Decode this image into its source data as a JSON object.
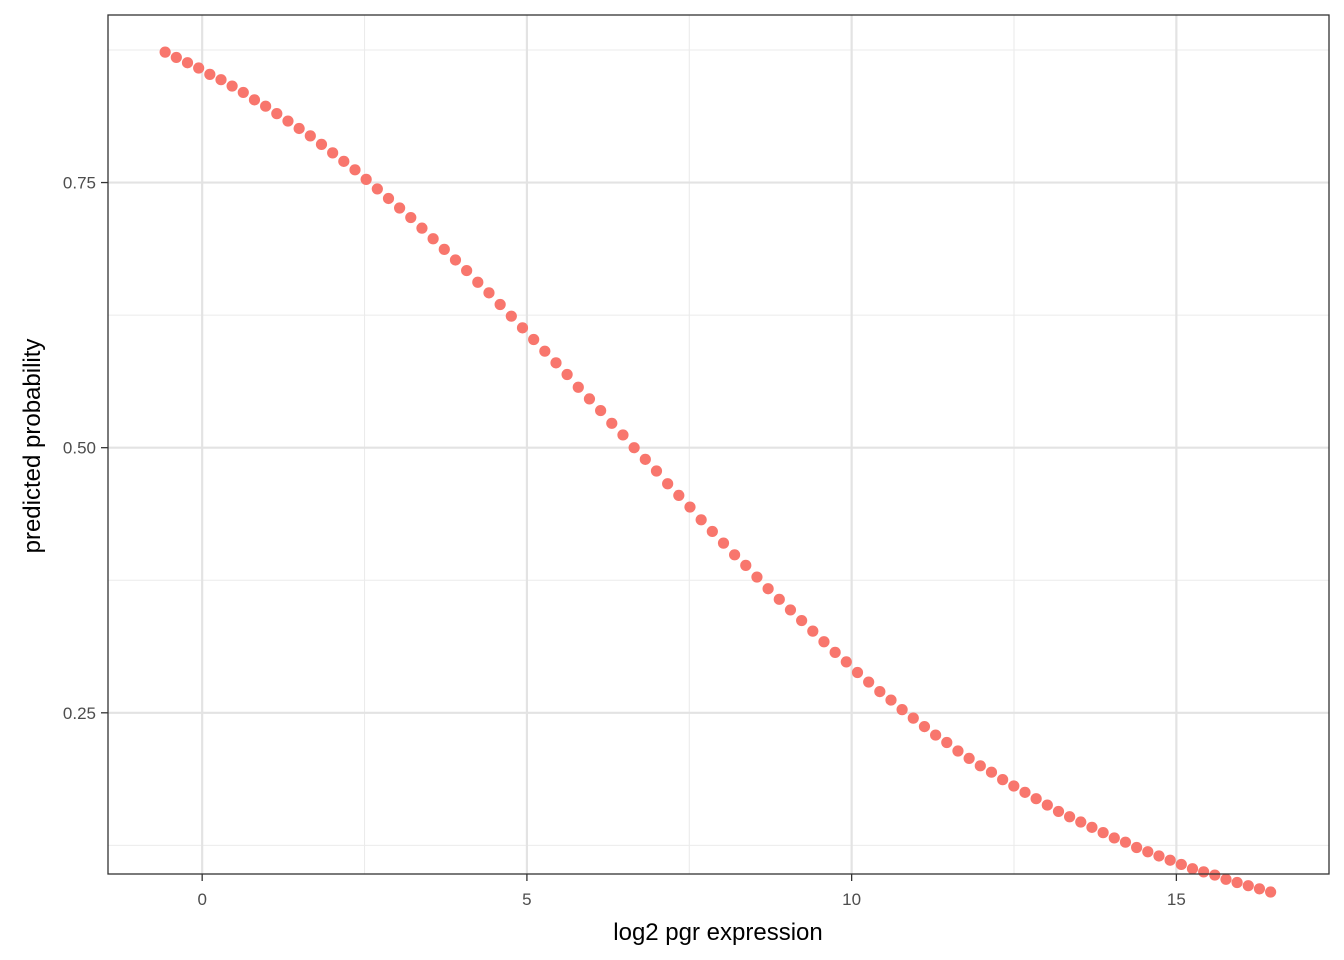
{
  "chart_data": {
    "type": "scatter",
    "title": "",
    "xlabel": "log2 pgr expression",
    "ylabel": "predicted probability",
    "xlim": [
      -1.45,
      17.35
    ],
    "ylim": [
      0.098,
      0.908
    ],
    "x_ticks": [
      0,
      5,
      10,
      15
    ],
    "x_tick_labels": [
      "0",
      "5",
      "10",
      "15"
    ],
    "y_ticks": [
      0.25,
      0.5,
      0.75
    ],
    "y_tick_labels": [
      "0.25",
      "0.50",
      "0.75"
    ],
    "x_minor_ticks": [
      2.5,
      7.5,
      12.5
    ],
    "y_minor_ticks": [
      0.125,
      0.375,
      0.625,
      0.875
    ],
    "grid": true,
    "legend": "none",
    "series": [
      {
        "color": "#F8766D",
        "x": [
          -0.57,
          -0.398,
          -0.226,
          -0.054,
          0.118,
          0.29,
          0.461,
          0.633,
          0.805,
          0.977,
          1.149,
          1.321,
          1.493,
          1.665,
          1.837,
          2.009,
          2.181,
          2.353,
          2.525,
          2.697,
          2.869,
          3.04,
          3.212,
          3.384,
          3.556,
          3.728,
          3.9,
          4.072,
          4.244,
          4.416,
          4.588,
          4.76,
          4.932,
          5.104,
          5.276,
          5.448,
          5.619,
          5.791,
          5.963,
          6.135,
          6.307,
          6.479,
          6.651,
          6.823,
          6.995,
          7.167,
          7.339,
          7.511,
          7.683,
          7.855,
          8.027,
          8.198,
          8.37,
          8.542,
          8.714,
          8.886,
          9.058,
          9.23,
          9.402,
          9.574,
          9.746,
          9.918,
          10.09,
          10.262,
          10.434,
          10.606,
          10.777,
          10.949,
          11.121,
          11.293,
          11.465,
          11.637,
          11.809,
          11.981,
          12.153,
          12.325,
          12.497,
          12.669,
          12.841,
          13.013,
          13.185,
          13.356,
          13.528,
          13.7,
          13.872,
          14.044,
          14.216,
          14.388,
          14.56,
          14.732,
          14.904,
          15.076,
          15.248,
          15.42,
          15.592,
          15.764,
          15.935,
          16.107,
          16.279,
          16.451
        ],
        "y": [
          0.873,
          0.868,
          0.863,
          0.858,
          0.852,
          0.847,
          0.841,
          0.835,
          0.828,
          0.822,
          0.815,
          0.808,
          0.801,
          0.794,
          0.786,
          0.778,
          0.77,
          0.762,
          0.753,
          0.744,
          0.735,
          0.726,
          0.717,
          0.707,
          0.697,
          0.687,
          0.677,
          0.667,
          0.656,
          0.646,
          0.635,
          0.624,
          0.613,
          0.602,
          0.591,
          0.58,
          0.569,
          0.557,
          0.546,
          0.535,
          0.523,
          0.512,
          0.5,
          0.489,
          0.478,
          0.466,
          0.455,
          0.444,
          0.432,
          0.421,
          0.41,
          0.399,
          0.389,
          0.378,
          0.367,
          0.357,
          0.347,
          0.337,
          0.327,
          0.317,
          0.307,
          0.298,
          0.288,
          0.279,
          0.27,
          0.262,
          0.253,
          0.245,
          0.237,
          0.229,
          0.222,
          0.214,
          0.207,
          0.2,
          0.194,
          0.187,
          0.181,
          0.175,
          0.169,
          0.163,
          0.157,
          0.152,
          0.147,
          0.142,
          0.137,
          0.132,
          0.128,
          0.123,
          0.119,
          0.115,
          0.111,
          0.107,
          0.103,
          0.1,
          0.097,
          0.093,
          0.09,
          0.087,
          0.084,
          0.081
        ]
      }
    ]
  }
}
